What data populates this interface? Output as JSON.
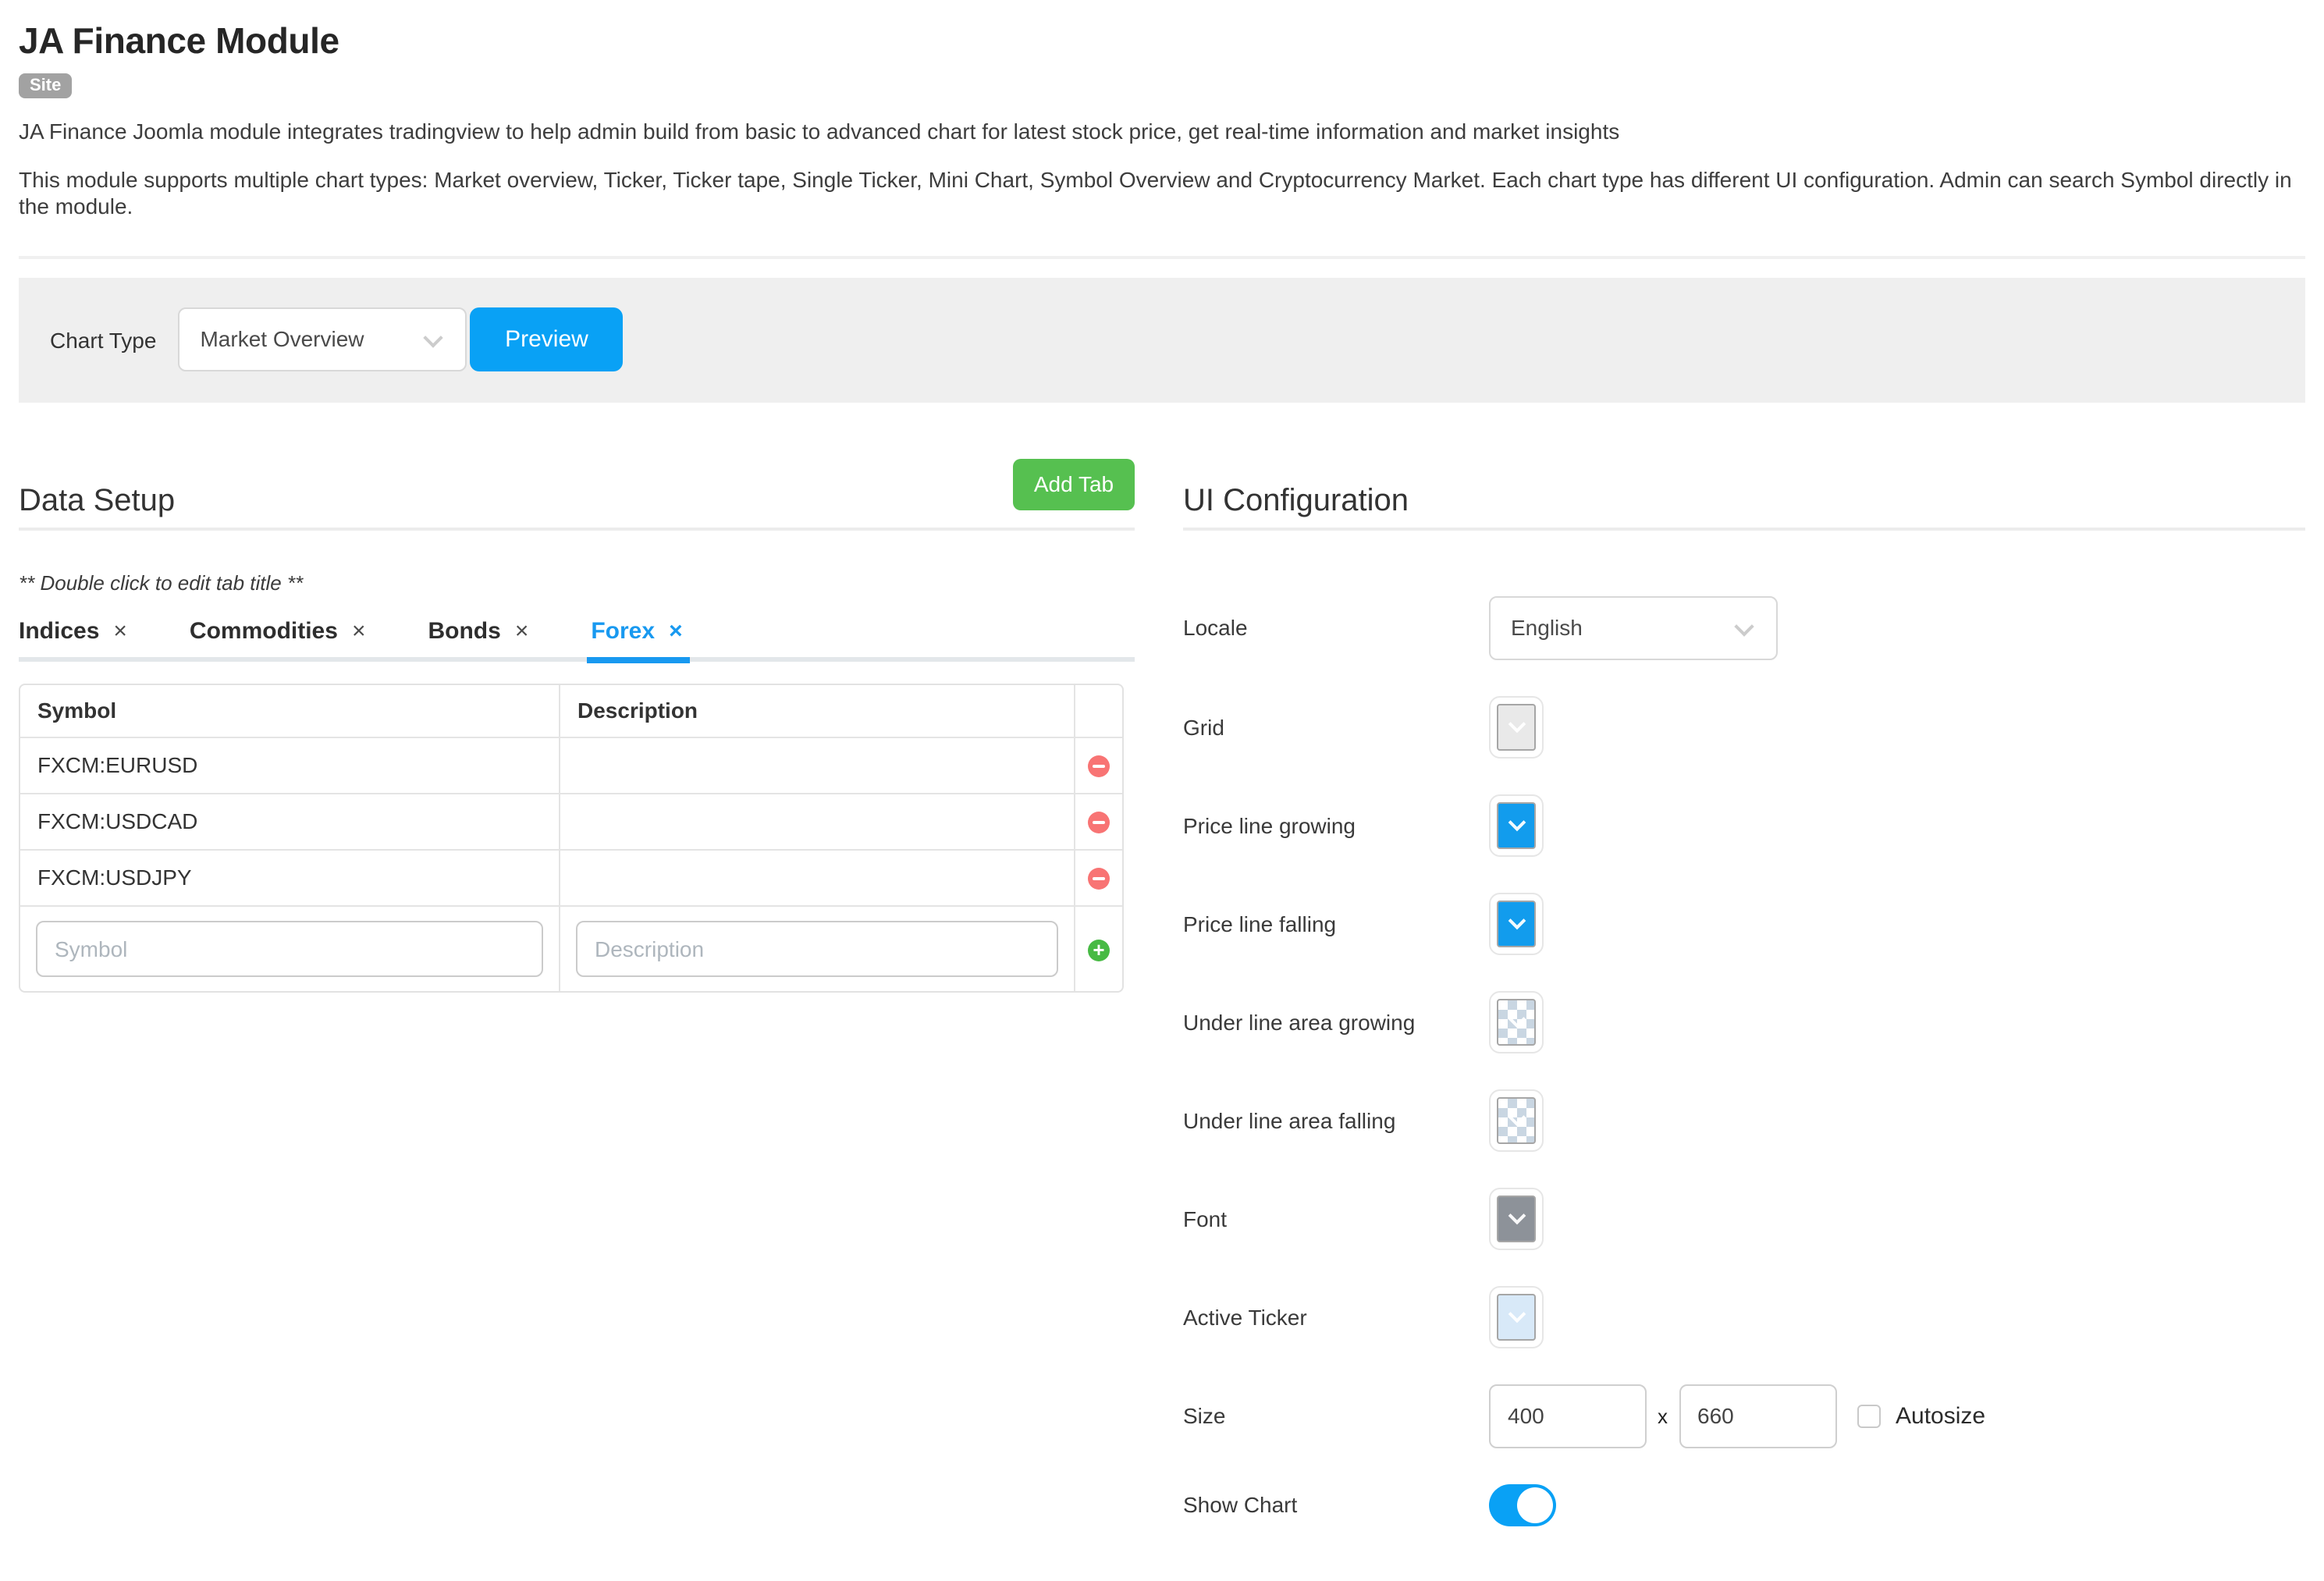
{
  "page": {
    "title": "JA Finance Module",
    "badge": "Site",
    "description1": "JA Finance Joomla module integrates tradingview to help admin build from basic to advanced chart for latest stock price, get real-time information and market insights",
    "description2": "This module supports multiple chart types: Market overview, Ticker, Ticker tape, Single Ticker, Mini Chart, Symbol Overview and Cryptocurrency Market. Each chart type has different UI configuration. Admin can search Symbol directly in the module."
  },
  "chart_type_bar": {
    "label": "Chart Type",
    "selected": "Market Overview",
    "preview_label": "Preview"
  },
  "data_setup": {
    "heading": "Data Setup",
    "add_tab_label": "Add Tab",
    "note": "** Double click to edit tab title **",
    "tabs": [
      {
        "label": "Indices",
        "close": "×",
        "active": false
      },
      {
        "label": "Commodities",
        "close": "×",
        "active": false
      },
      {
        "label": "Bonds",
        "close": "×",
        "active": false
      },
      {
        "label": "Forex",
        "close": "×",
        "active": true
      }
    ],
    "table": {
      "headers": {
        "symbol": "Symbol",
        "description": "Description"
      },
      "rows": [
        {
          "symbol": "FXCM:EURUSD",
          "description": ""
        },
        {
          "symbol": "FXCM:USDCAD",
          "description": ""
        },
        {
          "symbol": "FXCM:USDJPY",
          "description": ""
        }
      ],
      "symbol_placeholder": "Symbol",
      "description_placeholder": "Description"
    }
  },
  "ui_configuration": {
    "heading": "UI Configuration",
    "locale": {
      "label": "Locale",
      "value": "English"
    },
    "color_settings": [
      {
        "label": "Grid",
        "type": "solid",
        "color": "#e9e9e9"
      },
      {
        "label": "Price line growing",
        "type": "solid",
        "color": "#129ced"
      },
      {
        "label": "Price line falling",
        "type": "solid",
        "color": "#129ced"
      },
      {
        "label": "Under line area growing",
        "type": "transparent",
        "color": ""
      },
      {
        "label": "Under line area falling",
        "type": "transparent",
        "color": ""
      },
      {
        "label": "Font",
        "type": "solid",
        "color": "#8d9299"
      },
      {
        "label": "Active Ticker",
        "type": "solid",
        "color": "#d8e9f8"
      }
    ],
    "size": {
      "label": "Size",
      "width_value": "400",
      "separator": "x",
      "height_value": "660",
      "autosize_label": "Autosize",
      "autosize_checked": false
    },
    "show_chart": {
      "label": "Show Chart",
      "enabled": true
    }
  },
  "colors": {
    "accent_blue": "#09a1f5",
    "tab_active_blue": "#1899f0",
    "add_tab_green": "#56c050",
    "remove_red": "#f87474",
    "add_row_green": "#47ba44",
    "bar_background": "#efefef"
  }
}
